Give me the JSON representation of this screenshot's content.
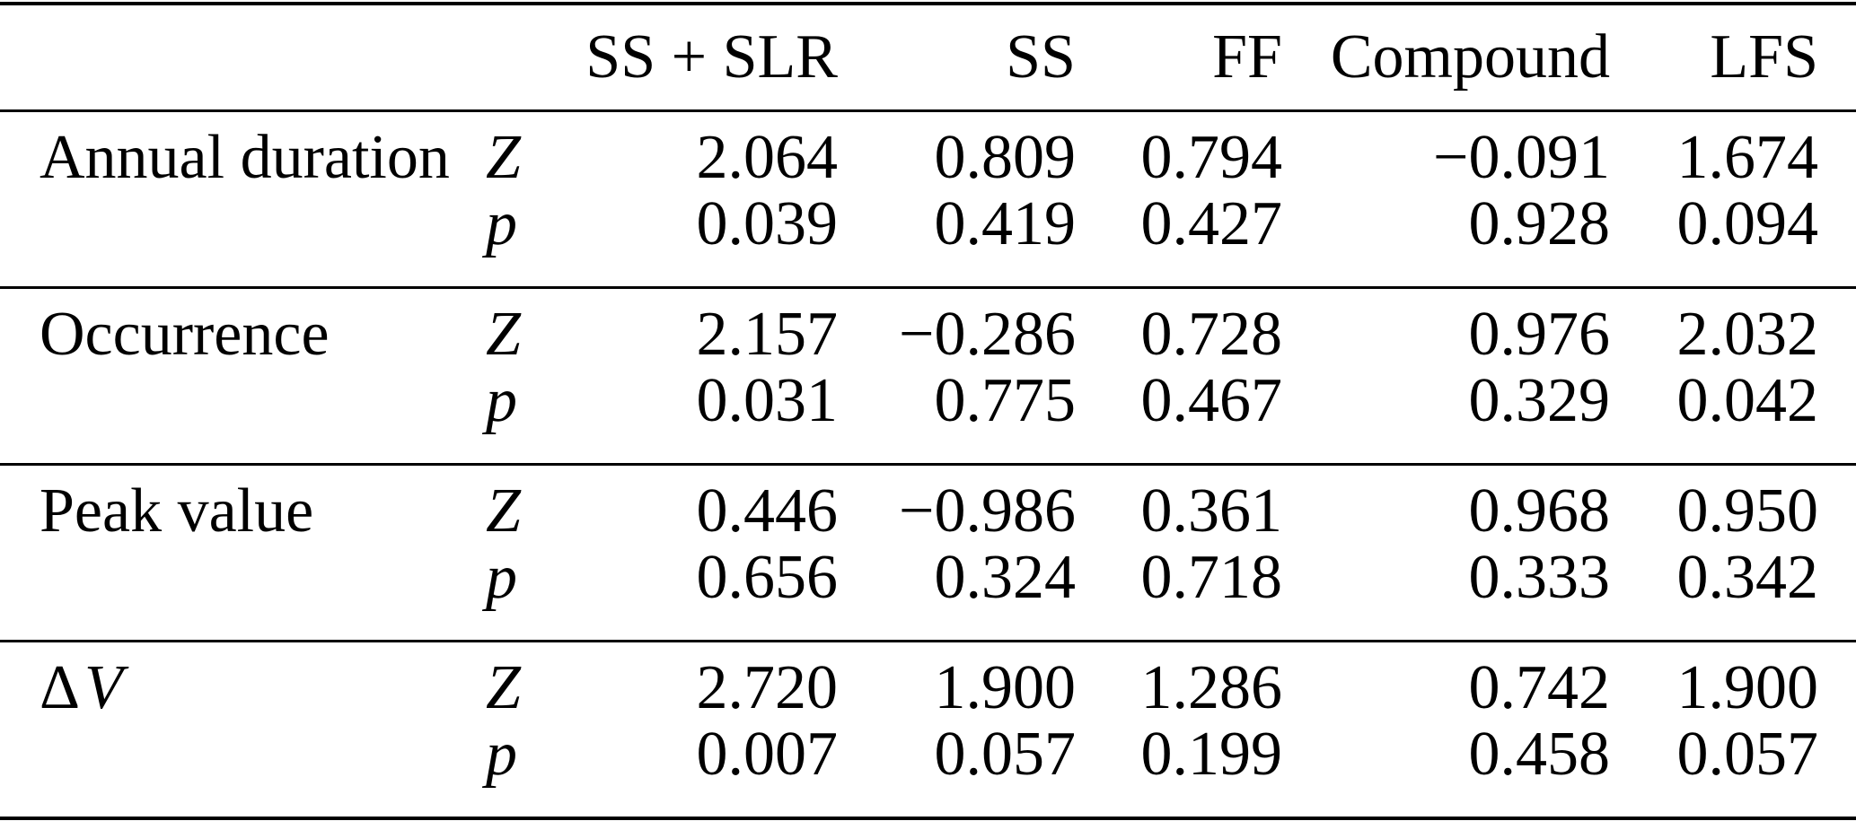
{
  "table": {
    "columns": [
      "SS + SLR",
      "SS",
      "FF",
      "Compound",
      "LFS"
    ],
    "sections": [
      {
        "label": {
          "normal": "Annual duration"
        },
        "rows": [
          {
            "stat": "Z",
            "values": [
              "2.064",
              "0.809",
              "0.794",
              "−0.091",
              "1.674"
            ]
          },
          {
            "stat": "p",
            "values": [
              "0.039",
              "0.419",
              "0.427",
              "0.928",
              "0.094"
            ]
          }
        ]
      },
      {
        "label": {
          "normal": "Occurrence"
        },
        "rows": [
          {
            "stat": "Z",
            "values": [
              "2.157",
              "−0.286",
              "0.728",
              "0.976",
              "2.032"
            ]
          },
          {
            "stat": "p",
            "values": [
              "0.031",
              "0.775",
              "0.467",
              "0.329",
              "0.042"
            ]
          }
        ]
      },
      {
        "label": {
          "normal": "Peak value"
        },
        "rows": [
          {
            "stat": "Z",
            "values": [
              "0.446",
              "−0.986",
              "0.361",
              "0.968",
              "0.950"
            ]
          },
          {
            "stat": "p",
            "values": [
              "0.656",
              "0.324",
              "0.718",
              "0.333",
              "0.342"
            ]
          }
        ]
      },
      {
        "label": {
          "normal": "Δ",
          "italic": "V"
        },
        "rows": [
          {
            "stat": "Z",
            "values": [
              "2.720",
              "1.900",
              "1.286",
              "0.742",
              "1.900"
            ]
          },
          {
            "stat": "p",
            "values": [
              "0.007",
              "0.057",
              "0.199",
              "0.458",
              "0.057"
            ]
          }
        ]
      }
    ]
  },
  "colors": {
    "text": "#000000",
    "background": "#ffffff",
    "rule": "#000000"
  }
}
